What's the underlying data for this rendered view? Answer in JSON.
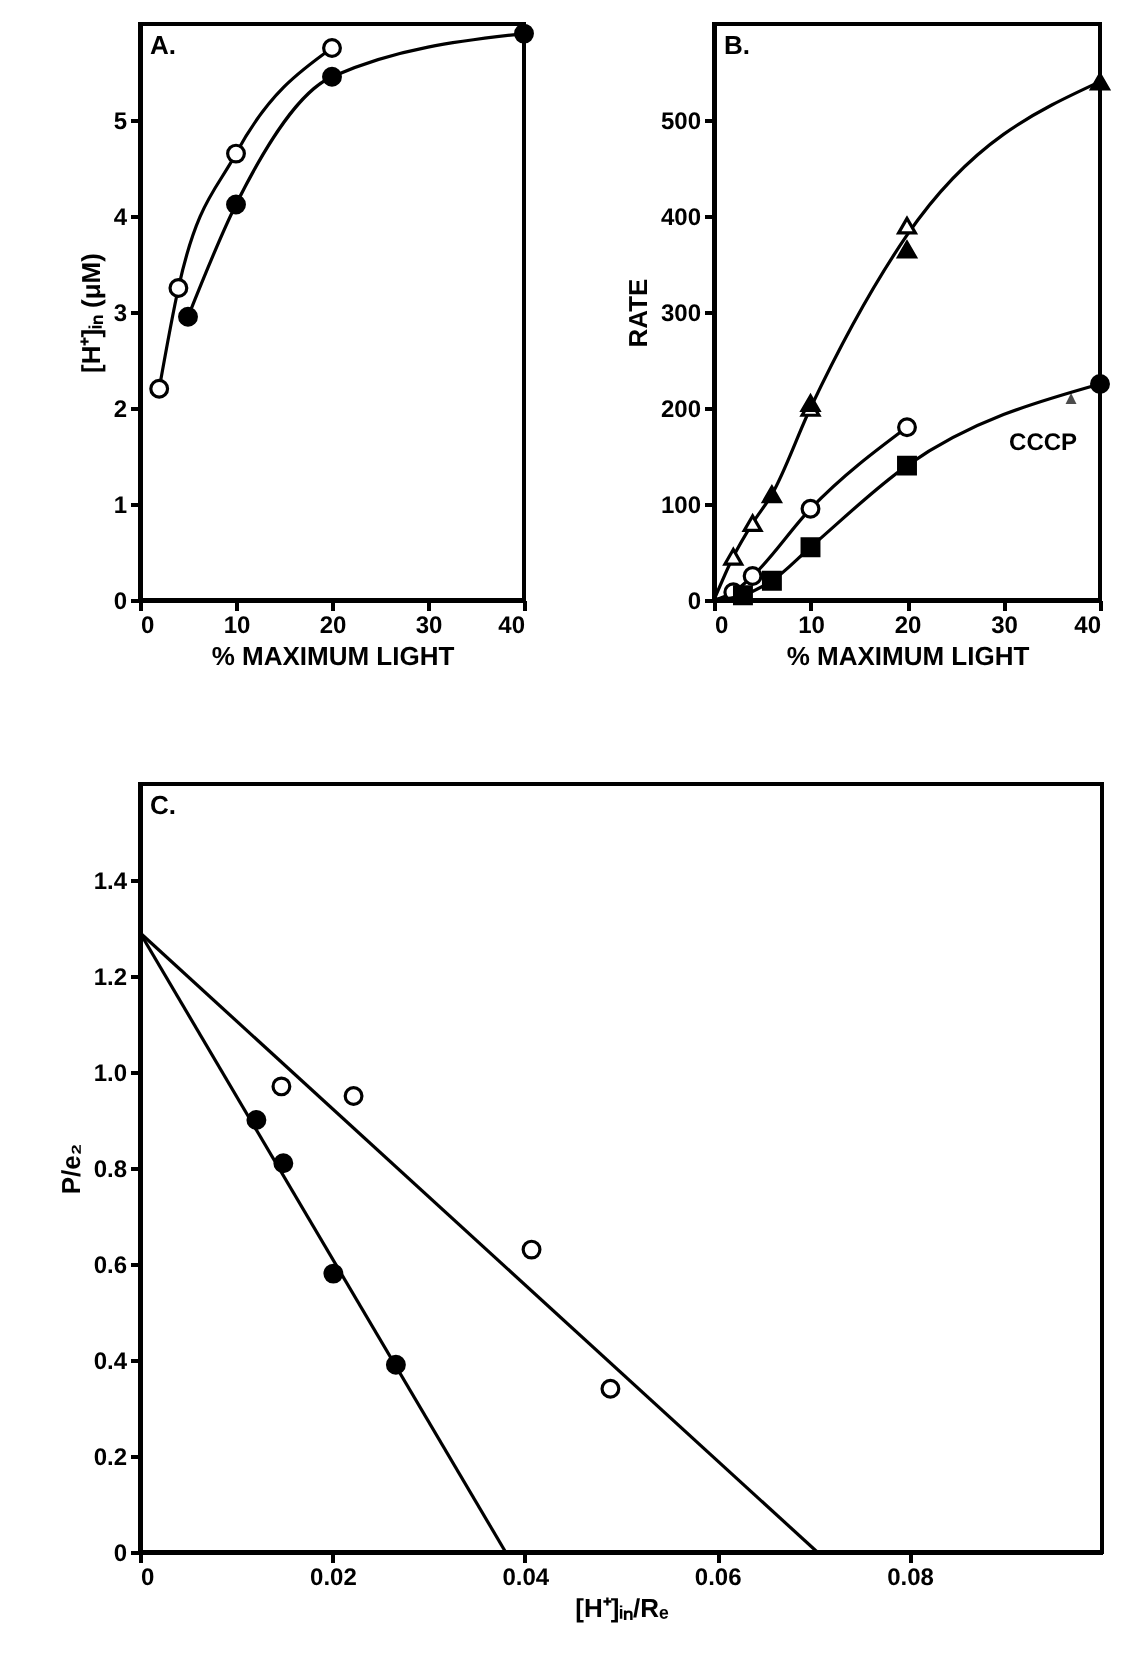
{
  "chart_data": [
    {
      "type": "line",
      "title": "A.",
      "xlabel": "% MAXIMUM LIGHT",
      "ylabel": "[H⁺]ᵢₙ (μM)",
      "xlim": [
        0,
        40
      ],
      "ylim": [
        0,
        6
      ],
      "xticks": [
        0,
        10,
        20,
        30,
        40
      ],
      "yticks": [
        0,
        1,
        2,
        3,
        4,
        5
      ],
      "grid": false,
      "legend": false,
      "series": [
        {
          "color": "#000000",
          "marker": "none",
          "x": [
            2,
            4,
            10,
            20
          ],
          "values": [
            2.2,
            3.25,
            4.65,
            5.75
          ]
        },
        {
          "type": "scatter",
          "color": "#ffffff",
          "marker": "circle",
          "x": [
            2,
            4,
            10,
            20
          ],
          "values": [
            2.2,
            3.25,
            4.65,
            5.75
          ]
        },
        {
          "color": "#000000",
          "marker": "circle",
          "x": [
            5,
            10,
            20,
            40
          ],
          "values": [
            2.95,
            4.12,
            5.45,
            5.9
          ]
        }
      ]
    },
    {
      "type": "line",
      "title": "B.",
      "xlabel": "% MAXIMUM LIGHT",
      "ylabel": "RATE",
      "xlim": [
        0,
        40
      ],
      "ylim": [
        0,
        600
      ],
      "xticks": [
        0,
        10,
        20,
        30,
        40
      ],
      "yticks": [
        0,
        100,
        200,
        300,
        400,
        500
      ],
      "grid": false,
      "legend": false,
      "annotations": [
        {
          "text": "CCCP",
          "x": 37,
          "y": 210
        }
      ],
      "series": [
        {
          "color": "#000000",
          "marker": "none",
          "x": [
            0,
            2,
            4,
            6,
            10,
            20,
            40
          ],
          "values": [
            0,
            45,
            80,
            110,
            200,
            380,
            540
          ]
        },
        {
          "type": "scatter",
          "color": "#ffffff",
          "marker": "triangle",
          "x": [
            2,
            4,
            10,
            20
          ],
          "values": [
            45,
            80,
            200,
            390
          ]
        },
        {
          "type": "scatter",
          "color": "#000000",
          "marker": "triangle",
          "x": [
            6,
            10,
            20,
            40
          ],
          "values": [
            110,
            205,
            365,
            540
          ]
        },
        {
          "color": "#000000",
          "marker": "none",
          "x": [
            0,
            2,
            4,
            10,
            20
          ],
          "values": [
            0,
            8,
            25,
            95,
            180
          ]
        },
        {
          "type": "scatter",
          "color": "#ffffff",
          "marker": "circle",
          "x": [
            2,
            4,
            10,
            20
          ],
          "values": [
            8,
            25,
            95,
            180
          ]
        },
        {
          "color": "#000000",
          "marker": "none",
          "x": [
            0,
            3,
            6,
            10,
            20,
            40
          ],
          "values": [
            0,
            5,
            20,
            55,
            140,
            225
          ]
        },
        {
          "type": "scatter",
          "color": "#000000",
          "marker": "square",
          "x": [
            3,
            6,
            10,
            20
          ],
          "values": [
            5,
            20,
            55,
            140
          ]
        },
        {
          "type": "scatter",
          "color": "#000000",
          "marker": "circle",
          "x": [
            40
          ],
          "values": [
            225
          ]
        }
      ]
    },
    {
      "type": "scatter",
      "title": "C.",
      "xlabel": "[H⁺]ᵢₙ/Rₑ",
      "ylabel": "P/e₂",
      "xlim": [
        0,
        0.1
      ],
      "ylim": [
        0,
        1.6
      ],
      "xticks": [
        0,
        0.02,
        0.04,
        0.06,
        0.08
      ],
      "yticks": [
        0,
        0.2,
        0.4,
        0.6,
        0.8,
        {
          "value": 1,
          "label": "1.0"
        },
        1.2,
        1.4
      ],
      "grid": false,
      "legend": false,
      "series": [
        {
          "color": "#ffffff",
          "marker": "circle",
          "x": [
            0.0147,
            0.0222,
            0.0407,
            0.0489
          ],
          "values": [
            0.97,
            0.95,
            0.63,
            0.34
          ]
        },
        {
          "color": "#000000",
          "marker": "circle",
          "x": [
            0.0121,
            0.0149,
            0.0201,
            0.0266
          ],
          "values": [
            0.9,
            0.81,
            0.58,
            0.39
          ]
        },
        {
          "type": "line",
          "color": "#000000",
          "marker": "none",
          "x": [
            0,
            0.038
          ],
          "values": [
            1.29,
            0
          ]
        },
        {
          "type": "line",
          "color": "#000000",
          "marker": "none",
          "x": [
            0,
            0.0704
          ],
          "values": [
            1.29,
            0
          ]
        }
      ]
    }
  ]
}
